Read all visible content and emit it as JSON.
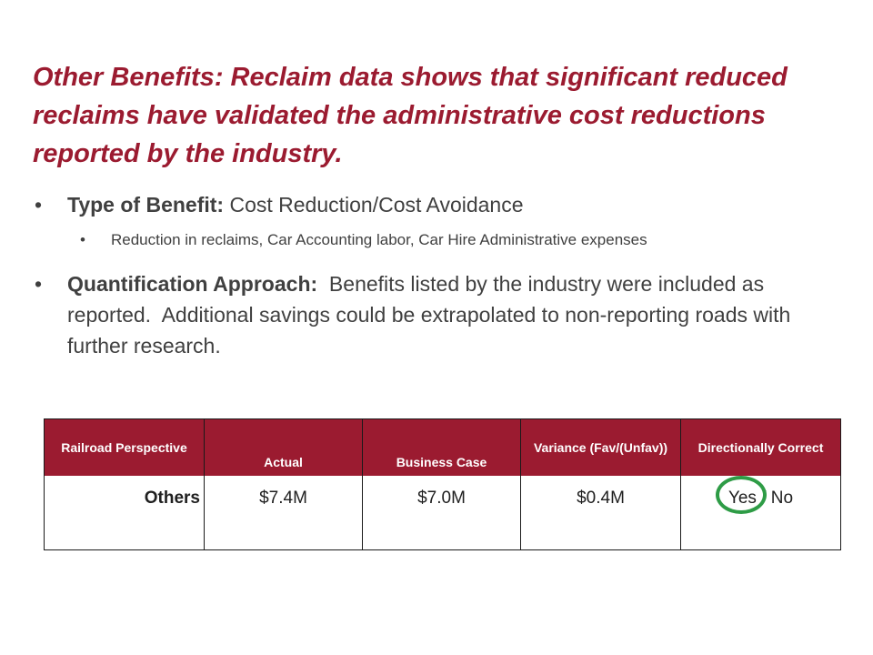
{
  "slide": {
    "title": "Other Benefits: Reclaim data shows that significant reduced reclaims have validated the administrative cost reductions reported by the industry.",
    "bullets": [
      {
        "lead": "Type of Benefit:",
        "text": " Cost Reduction/Cost Avoidance",
        "sub": "Reduction in reclaims, Car Accounting labor, Car Hire Administrative expenses"
      },
      {
        "lead": "Quantification Approach:",
        "text": "  Benefits listed by the industry were included as reported.  Additional savings could be extrapolated to non-reporting roads with further research."
      }
    ]
  },
  "table": {
    "headers": [
      "Railroad Perspective",
      "Actual",
      "Business Case",
      "Variance (Fav/(Unfav))",
      "Directionally Correct"
    ],
    "row": {
      "label": "Others",
      "actual": "$7.4M",
      "business_case": "$7.0M",
      "variance": "$0.4M",
      "directionally_correct": "Yes / No",
      "selected": "Yes"
    }
  },
  "colors": {
    "accent": "#9b1b30",
    "selection_circle": "#2e9c46"
  }
}
